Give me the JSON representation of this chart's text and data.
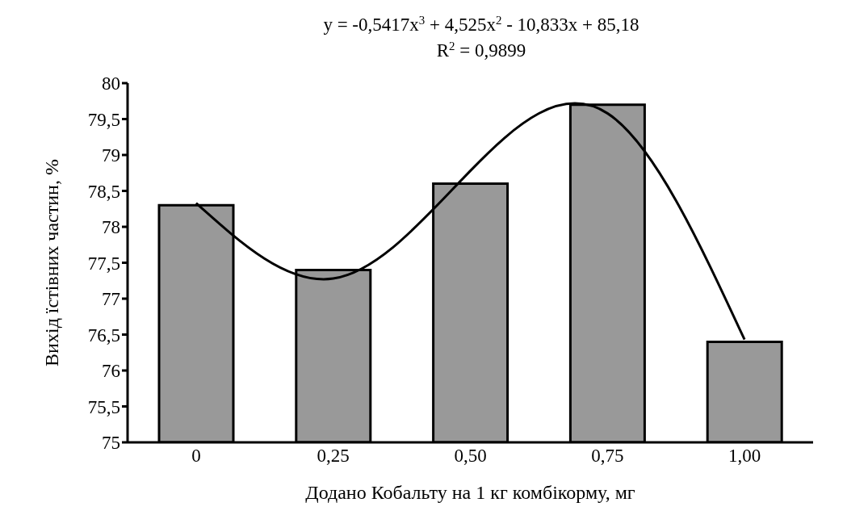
{
  "chart_data": {
    "type": "bar",
    "xlabel": "Додано Кобальту на 1 кг комбікорму, мг",
    "ylabel": "Вихід їстівних частин, %",
    "annotations": [
      "y = -0,5417x$^{3}$ + 4,525x$^{2}$ - 10,833x + 85,18",
      "R$^{2}$ = 0,9899"
    ],
    "categories": [
      "0",
      "0,25",
      "0,50",
      "0,75",
      "1,00"
    ],
    "series": [
      {
        "color": "#999999",
        "values": [
          78.3,
          77.4,
          78.6,
          79.7,
          76.4
        ]
      },
      {
        "type": "line",
        "color": "#000000",
        "x": [
          "0",
          "0,25",
          "0,50",
          "0,75",
          "1,00"
        ],
        "values": [
          78.33,
          77.28,
          78.78,
          79.58,
          76.43
        ]
      }
    ],
    "ylim": [
      75,
      80
    ],
    "yticks": [
      75,
      {
        "value": 75.5,
        "label": "75,5"
      },
      76,
      {
        "value": 76.5,
        "label": "76,5"
      },
      77,
      {
        "value": 77.5,
        "label": "77,5"
      },
      78,
      {
        "value": 78.5,
        "label": "78,5"
      },
      79,
      {
        "value": 79.5,
        "label": "79,5"
      },
      80
    ],
    "grid": false,
    "marker": "none",
    "line_style": "solid"
  }
}
